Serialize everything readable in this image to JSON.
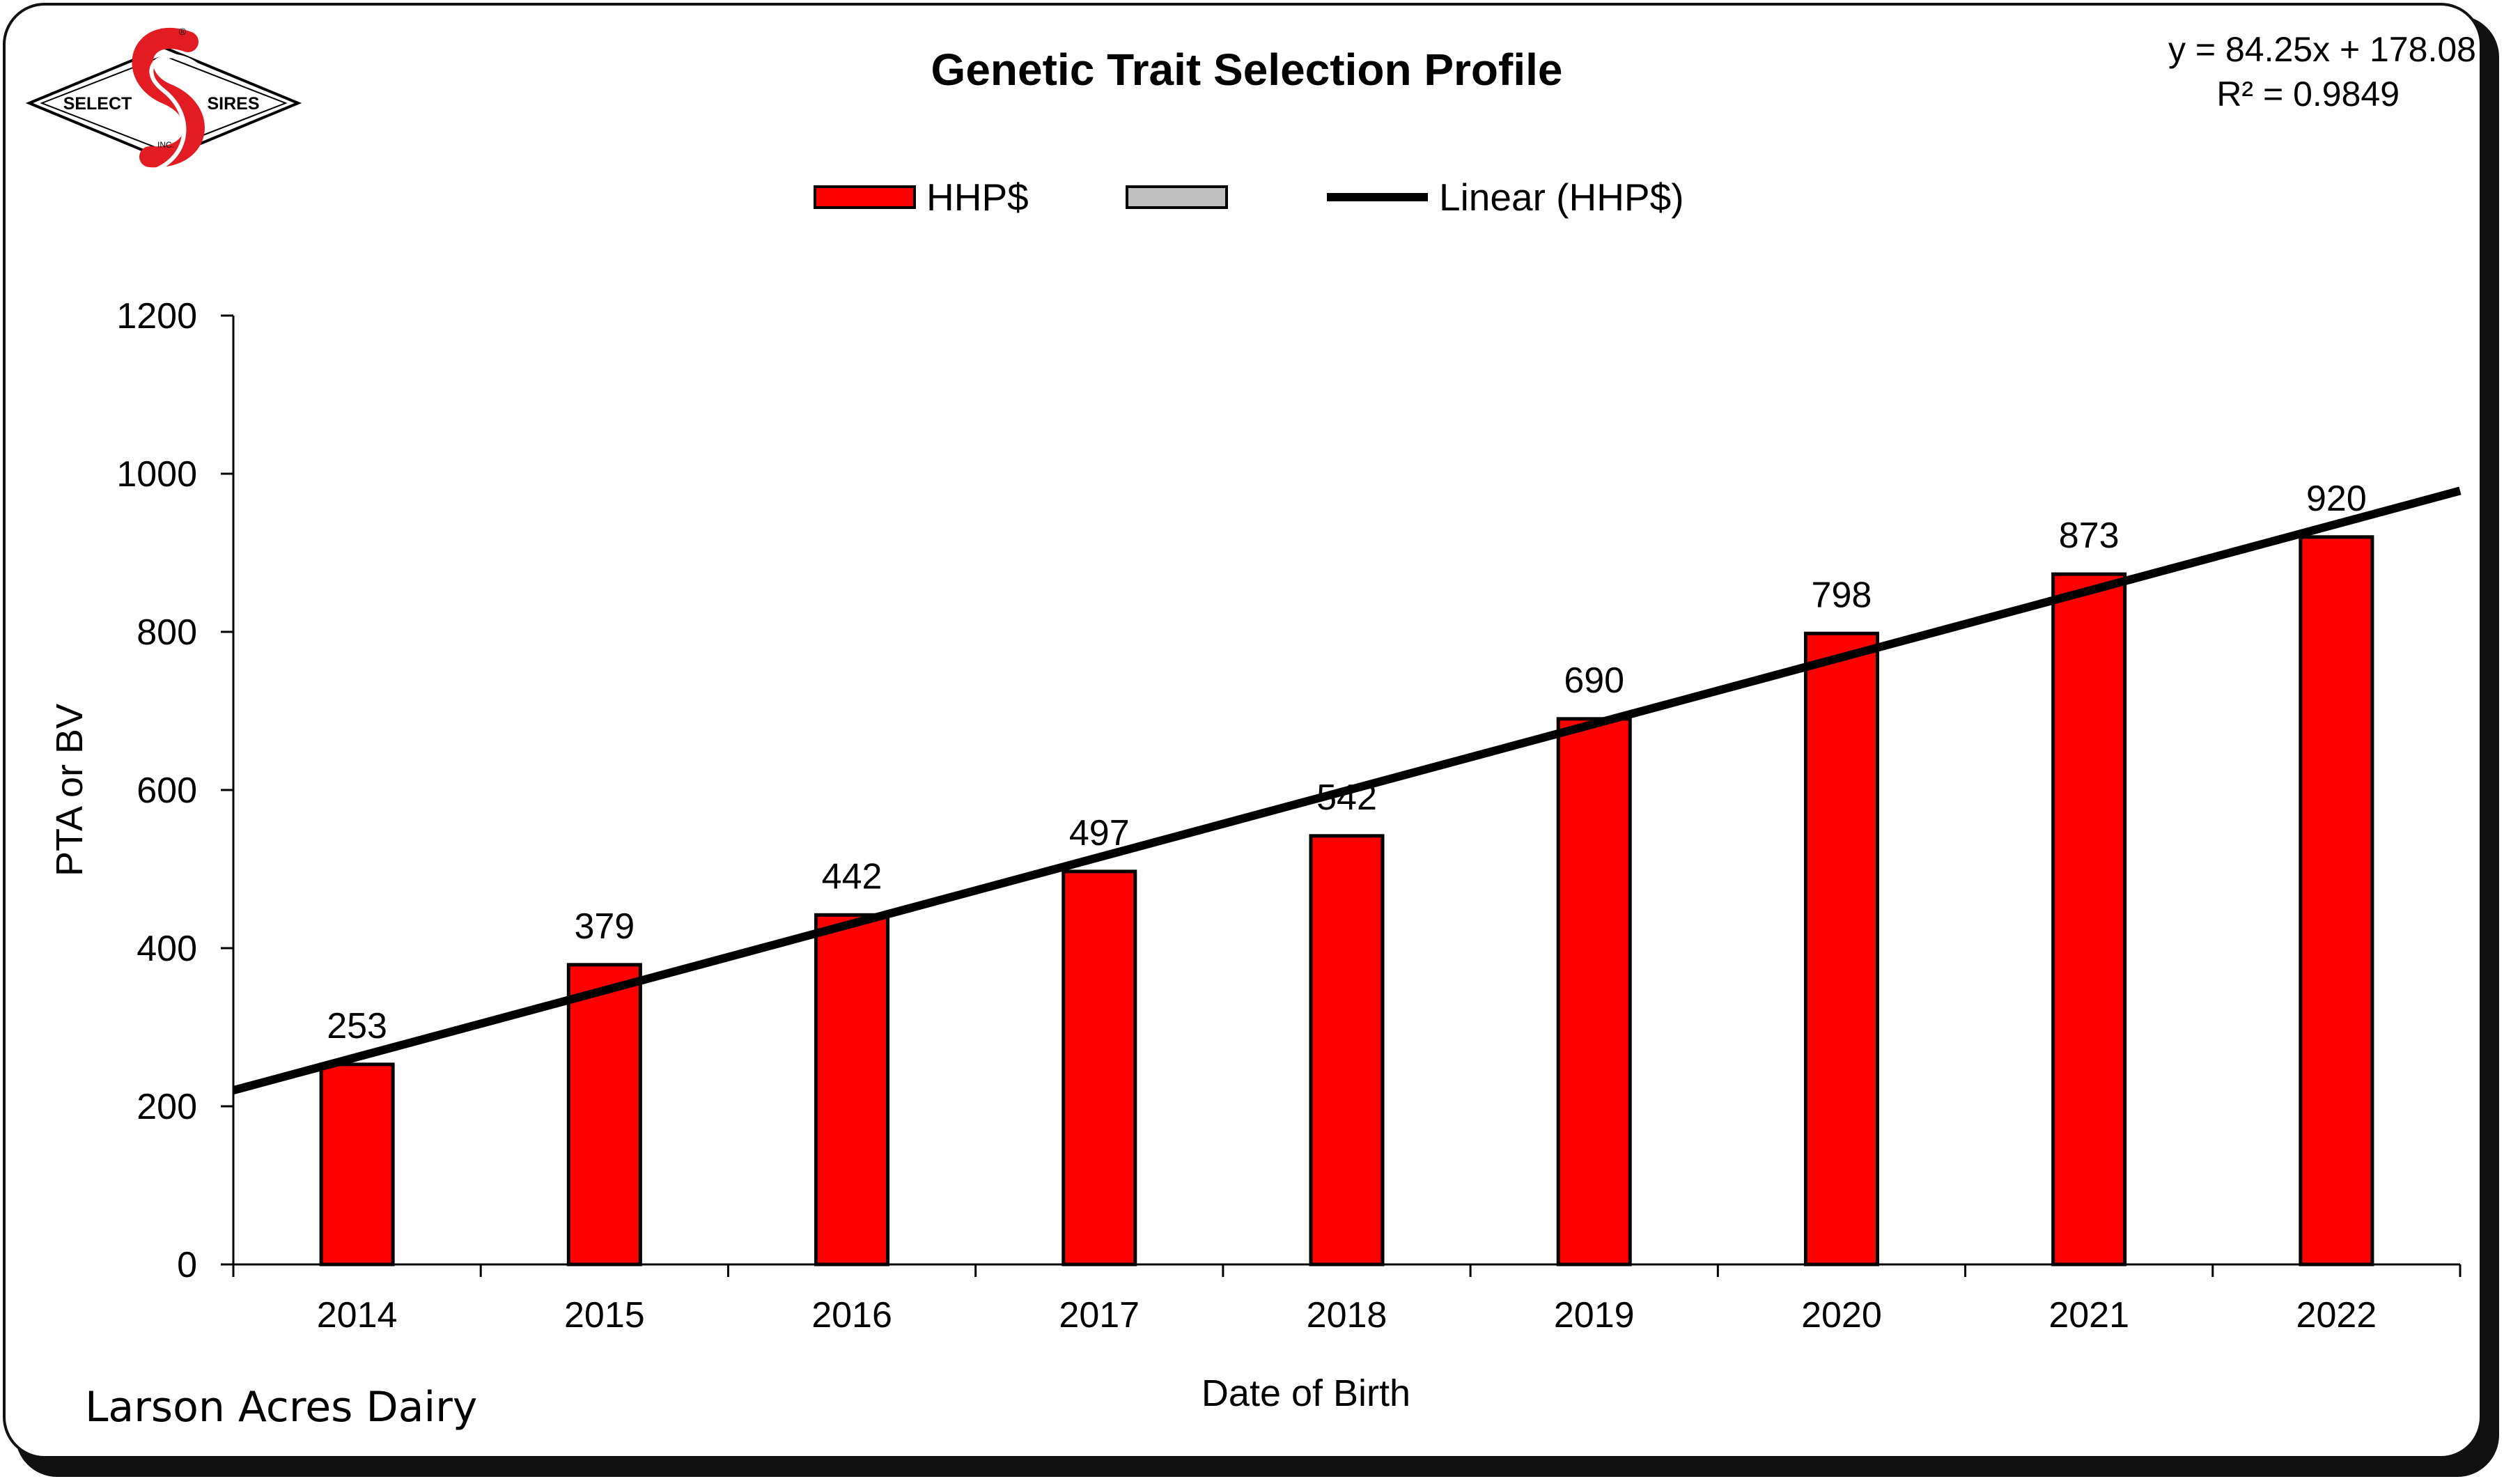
{
  "logo": {
    "left_text": "SELECT",
    "right_text": "SIRES",
    "small_text": "INC.",
    "reg_mark": "®"
  },
  "footer": {
    "farm_name": "Larson Acres Dairy"
  },
  "colors": {
    "bar_fill": "#ff0000",
    "bar_stroke": "#000000",
    "trend": "#000000",
    "legend_gray": "#c0c0c0"
  },
  "chart_data": {
    "type": "bar",
    "title": "Genetic Trait Selection Profile",
    "xlabel": "Date of Birth",
    "ylabel": "PTA or BV",
    "ylim": [
      0,
      1200
    ],
    "yticks": [
      0,
      200,
      400,
      600,
      800,
      1000,
      1200
    ],
    "categories": [
      "2014",
      "2015",
      "2016",
      "2017",
      "2018",
      "2019",
      "2020",
      "2021",
      "2022"
    ],
    "series": [
      {
        "name": "HHP$",
        "values": [
          253,
          379,
          442,
          497,
          542,
          690,
          798,
          873,
          920
        ]
      }
    ],
    "legend": {
      "placement": "top-center",
      "entries": [
        "HHP$",
        "",
        "Linear (HHP$)"
      ]
    },
    "trendline": {
      "name": "Linear (HHP$)",
      "type": "linear",
      "slope": 84.25,
      "intercept": 178.08,
      "equation": "y = 84.25x + 178.08",
      "r_squared": "R² = 0.9849"
    },
    "grid": false
  }
}
